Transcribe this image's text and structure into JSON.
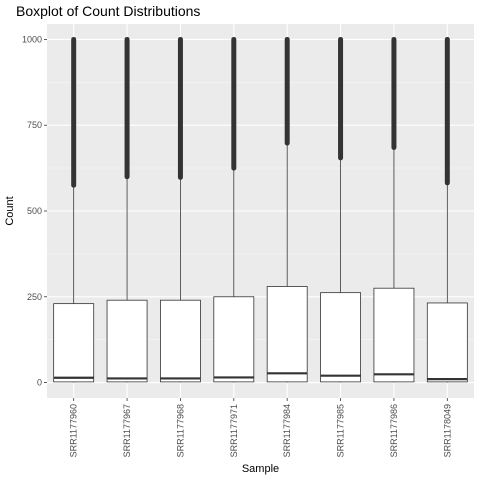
{
  "chart_data": {
    "type": "boxplot",
    "title": "Boxplot of Count Distributions",
    "xlabel": "Sample",
    "ylabel": "Count",
    "ylim": [
      -45,
      1045
    ],
    "yticks": [
      0,
      250,
      500,
      750,
      1000
    ],
    "grid": true,
    "legend": "none",
    "categories": [
      "SRR1177960",
      "SRR1177967",
      "SRR1177968",
      "SRR1177971",
      "SRR1177984",
      "SRR1177985",
      "SRR1177986",
      "SRR1178049"
    ],
    "boxes": [
      {
        "min": 0,
        "q1": 2,
        "median": 14,
        "q3": 230,
        "whisker_high": 575,
        "outliers_from": 575,
        "outliers_to": 1000
      },
      {
        "min": 0,
        "q1": 2,
        "median": 12,
        "q3": 240,
        "whisker_high": 600,
        "outliers_from": 600,
        "outliers_to": 1000
      },
      {
        "min": 0,
        "q1": 2,
        "median": 12,
        "q3": 240,
        "whisker_high": 598,
        "outliers_from": 598,
        "outliers_to": 1000
      },
      {
        "min": 0,
        "q1": 2,
        "median": 15,
        "q3": 250,
        "whisker_high": 625,
        "outliers_from": 625,
        "outliers_to": 1000
      },
      {
        "min": 0,
        "q1": 2,
        "median": 27,
        "q3": 280,
        "whisker_high": 698,
        "outliers_from": 698,
        "outliers_to": 1000
      },
      {
        "min": 0,
        "q1": 2,
        "median": 20,
        "q3": 262,
        "whisker_high": 655,
        "outliers_from": 655,
        "outliers_to": 1000
      },
      {
        "min": 0,
        "q1": 2,
        "median": 24,
        "q3": 275,
        "whisker_high": 685,
        "outliers_from": 685,
        "outliers_to": 1000
      },
      {
        "min": 0,
        "q1": 2,
        "median": 10,
        "q3": 232,
        "whisker_high": 582,
        "outliers_from": 582,
        "outliers_to": 1000
      }
    ],
    "colors": {
      "panel": "#ebebeb",
      "grid_major": "#ffffff",
      "grid_minor": "#f5f5f5",
      "box_fill": "#ffffff",
      "box_line": "#333333",
      "outlier": "#333333"
    }
  }
}
